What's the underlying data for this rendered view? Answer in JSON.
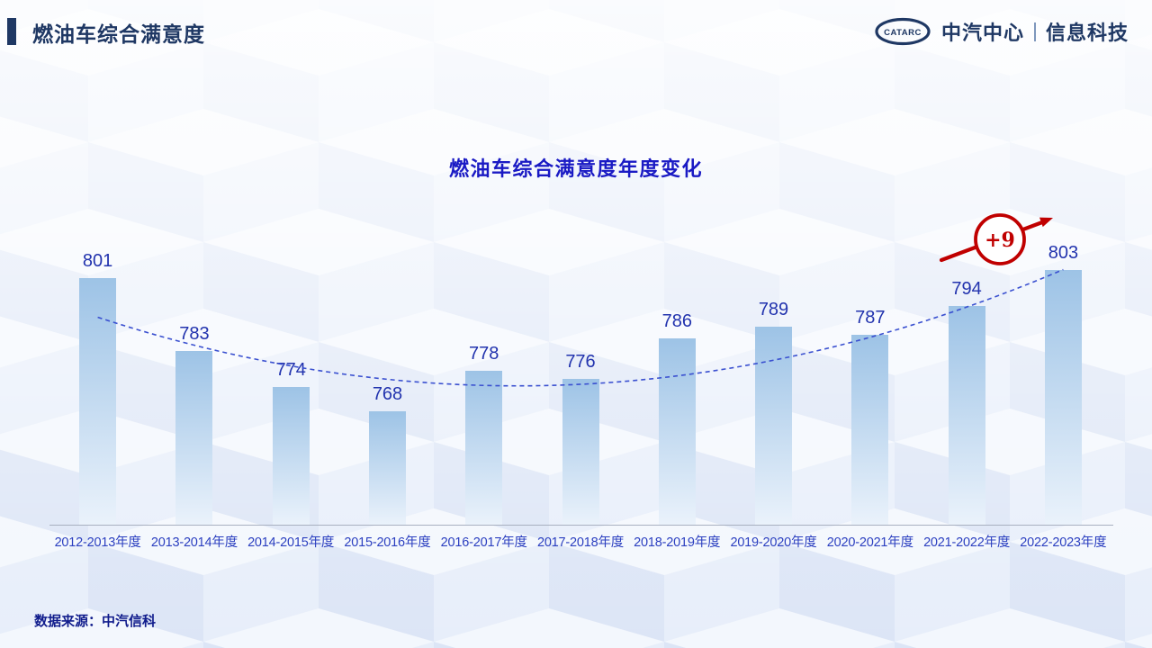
{
  "header": {
    "title": "燃油车综合满意度",
    "logo_text": "CATARC",
    "brand_primary": "中汽中心",
    "brand_secondary": "信息科技"
  },
  "chart_data": {
    "type": "bar",
    "title": "燃油车综合满意度年度变化",
    "categories": [
      "2012-2013年度",
      "2013-2014年度",
      "2014-2015年度",
      "2015-2016年度",
      "2016-2017年度",
      "2017-2018年度",
      "2018-2019年度",
      "2019-2020年度",
      "2020-2021年度",
      "2021-2022年度",
      "2022-2023年度"
    ],
    "values": [
      801,
      783,
      774,
      768,
      778,
      776,
      786,
      789,
      787,
      794,
      803
    ],
    "xlabel": "",
    "ylabel": "",
    "ylim": [
      740,
      810
    ],
    "grid": false,
    "legend": "none",
    "data_labels": true,
    "trendline": {
      "style": "dashed",
      "shape": "u-curve",
      "color": "#3A50D0"
    },
    "annotation": {
      "label": "+9",
      "color": "#C00000"
    }
  },
  "footer": {
    "source": "数据来源：中汽信科"
  },
  "colors": {
    "brand_navy": "#1F3864",
    "chart_title_blue": "#1A1AC4",
    "value_label_blue": "#2233AE",
    "axis_label_blue": "#2B3FC0",
    "bar_gradient_top": "#9DC3E6",
    "bar_gradient_bottom": "#EAF2FB",
    "axis_line": "#A8B0C0",
    "trend_blue": "#3A50D0",
    "annotation_red": "#C00000",
    "footer_navy": "#101C8C",
    "pattern_blue_left": "#DCE5F6",
    "pattern_blue_right": "#E7EEFA",
    "pattern_blue_top": "#F3F7FD"
  }
}
